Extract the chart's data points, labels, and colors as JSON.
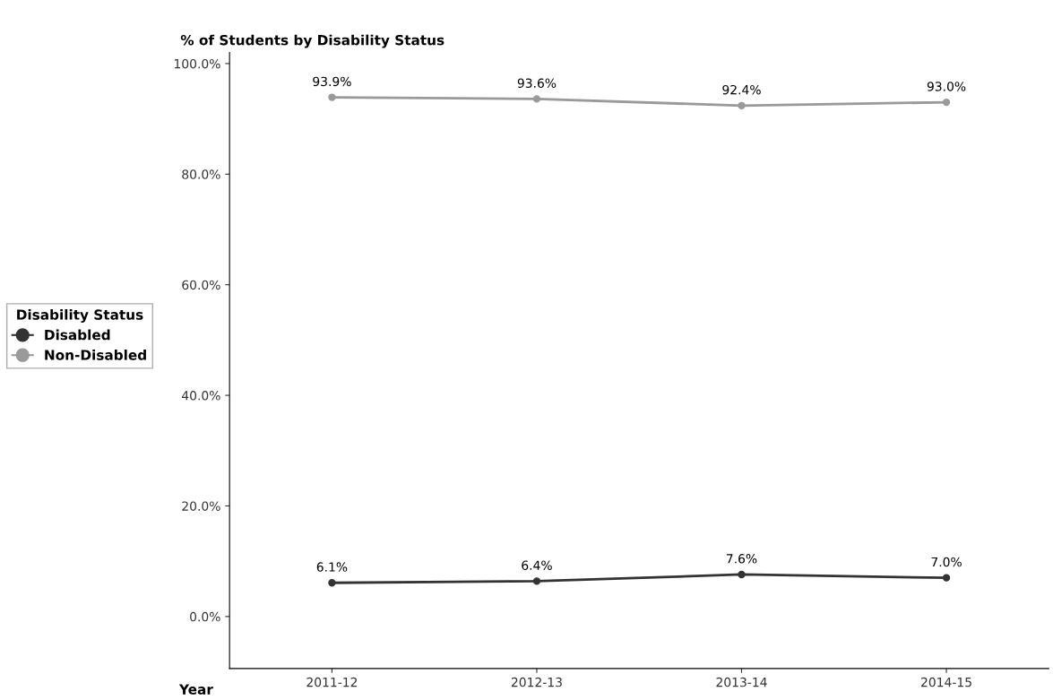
{
  "chart_data": {
    "type": "line",
    "title": "% of Students by Disability Status",
    "xlabel": "Year",
    "legend_title": "Disability Status",
    "categories": [
      "2011-12",
      "2012-13",
      "2013-14",
      "2014-15"
    ],
    "series": [
      {
        "name": "Disabled",
        "color": "#333333",
        "values": [
          6.1,
          6.4,
          7.6,
          7.0
        ],
        "value_labels": [
          "6.1%",
          "6.4%",
          "7.6%",
          "7.0%"
        ]
      },
      {
        "name": "Non-Disabled",
        "color": "#9a9a9a",
        "values": [
          93.9,
          93.6,
          92.4,
          93.0
        ],
        "value_labels": [
          "93.9%",
          "93.6%",
          "92.4%",
          "93.0%"
        ]
      }
    ],
    "ylim": [
      -9.4,
      102
    ],
    "yticks": [
      {
        "value": 0,
        "label": "0.0%"
      },
      {
        "value": 20,
        "label": "20.0%"
      },
      {
        "value": 40,
        "label": "40.0%"
      },
      {
        "value": 60,
        "label": "60.0%"
      },
      {
        "value": 80,
        "label": "80.0%"
      },
      {
        "value": 100,
        "label": "100.0%"
      }
    ],
    "grid": false,
    "legend": "left",
    "marker": "circle",
    "line_style": "solid"
  }
}
